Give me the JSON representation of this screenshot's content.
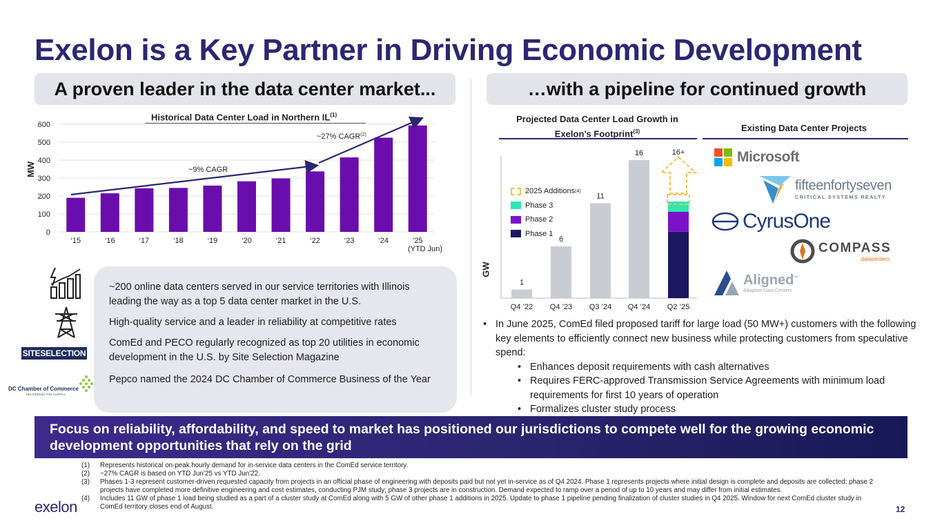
{
  "title": "Exelon is a Key Partner in Driving Economic Development",
  "left_pill": "A proven leader in the data center market...",
  "right_pill": "…with a pipeline for continued growth",
  "historical_chart": {
    "title": "Historical Data Center Load in Northern IL",
    "title_sup": "(1)",
    "ylabel": "MW",
    "annotation_cagr_early": "~9% CAGR",
    "annotation_cagr_late": "~27% CAGR",
    "annotation_cagr_late_sup": "(2)",
    "last_label_note": "(YTD Jun)"
  },
  "projected_chart": {
    "title_line1": "Projected Data Center Load Growth in",
    "title_line2": "Exelon’s Footprint",
    "title_sup": "(3)",
    "ylabel": "GW",
    "legend": {
      "additions": "2025 Additions",
      "additions_sup": "(4)",
      "phase3": "Phase 3",
      "phase2": "Phase 2",
      "phase1": "Phase 1"
    },
    "top_label": "16+"
  },
  "existing_projects": {
    "title": "Existing Data Center Projects",
    "microsoft": "Microsoft",
    "fifteen_big": "fifteenfortyseven",
    "fifteen_small": "CRITICAL SYSTEMS REALTY",
    "cyrusone": "CyrusOne",
    "compass1": "COMPASS",
    "compass2": "datacenters.",
    "aligned": "Aligned",
    "aligned_tm": "™",
    "aligned_small": "Adaptive Data Centers"
  },
  "left_points": [
    "~200 online data centers served in our service territories with Illinois leading the way as a top 5 data center market in the U.S.",
    "High-quality service and a leader in reliability at competitive rates",
    "ComEd and PECO regularly recognized as top 20 utilities in economic development in the U.S. by Site Selection Magazine",
    "Pepco named the 2024 DC Chamber of Commerce Business of the Year"
  ],
  "side_logos": {
    "siteselection": "SITESELECTION",
    "dcchamber": "DC Chamber of Commerce",
    "dcchamber_tag": "DELIVERING THE CAPITAL"
  },
  "right_bullets": {
    "main": "In June 2025, ComEd filed proposed tariff for large load (50 MW+) customers with the following key elements to efficiently connect new business while protecting customers from speculative spend:",
    "sub": [
      "Enhances deposit requirements with cash alternatives",
      "Requires FERC-approved Transmission Service Agreements with minimum load requirements for first 10 years of operation",
      "Formalizes cluster study process"
    ]
  },
  "banner": "Focus on reliability, affordability, and speed to market has positioned our jurisdictions to compete well for the growing economic development opportunities that rely on the grid",
  "footnotes": [
    {
      "n": "(1)",
      "t": "Represents historical on-peak hourly demand for in-service data centers in the ComEd service territory."
    },
    {
      "n": "(2)",
      "t": "~27% CAGR is based on YTD Jun’25 vs YTD Jun’22."
    },
    {
      "n": "(3)",
      "t": "Phases 1-3 represent customer-driven requested capacity from projects in an official phase of engineering with deposits paid but not yet in-service as of Q4 2024. Phase 1 represents projects where initial design is complete and deposits are collected; phase 2 projects have completed more definitive engineering and cost estimates, conducting PJM study; phase 3 projects are in construction. Demand expected to ramp over a period of up to 10 years and may differ from initial estimates."
    },
    {
      "n": "(4)",
      "t": "Includes 11 GW of phase 1 load being studied as a part of a cluster study at ComEd along with 5 GW of other phase 1 additions in 2025. Update to phase 1 pipeline pending finalization of cluster studies in Q4 2025. Window for next ComEd cluster study in ComEd territory closes end of August."
    }
  ],
  "footer_logo": "exelon",
  "page_number": "12",
  "colors": {
    "brand": "#2d2672",
    "bar_purple": "#6a0dad",
    "phase1": "#1c1760",
    "phase2": "#7b12c9",
    "phase3": "#2ee6b0",
    "additions": "#f2c14e",
    "gray_bar": "#c9cdd3"
  },
  "chart_data": [
    {
      "type": "bar",
      "title": "Historical Data Center Load in Northern IL",
      "xlabel": "",
      "ylabel": "MW",
      "categories": [
        "‘15",
        "‘16",
        "‘17",
        "‘18",
        "‘19",
        "‘20",
        "‘21",
        "‘22",
        "‘23",
        "‘24",
        "‘25"
      ],
      "values": [
        190,
        215,
        243,
        245,
        258,
        282,
        298,
        337,
        415,
        525,
        593
      ],
      "ylim": [
        0,
        600
      ],
      "yticks": [
        0,
        100,
        200,
        300,
        400,
        500,
        600
      ],
      "grid": true
    },
    {
      "type": "bar",
      "title": "Projected Data Center Load Growth in Exelon’s Footprint",
      "xlabel": "",
      "ylabel": "GW",
      "categories": [
        "Q4 ’22",
        "Q4 ’23",
        "Q3 ’24",
        "Q4 ’24",
        "Q2 ’25"
      ],
      "values": [
        1,
        6,
        11,
        16,
        null
      ],
      "data_labels": [
        "1",
        "6",
        "11",
        "16",
        ""
      ],
      "stacked_last": [
        {
          "name": "Phase 1",
          "value": 7.7
        },
        {
          "name": "Phase 2",
          "value": 2.3
        },
        {
          "name": "Phase 3",
          "value": 1.2
        }
      ],
      "ylim": [
        0,
        16
      ]
    }
  ]
}
